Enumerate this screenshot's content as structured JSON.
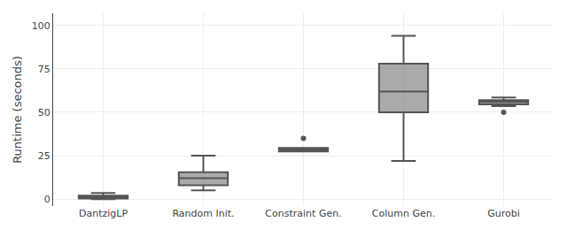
{
  "chart_data": {
    "type": "box",
    "categories": [
      "DantzigLP",
      "Random Init.",
      "Constraint Gen.",
      "Column Gen.",
      "Gurobi"
    ],
    "boxes": [
      {
        "q1": 0.3,
        "median": 1.0,
        "q3": 2.0,
        "whislo": 0.0,
        "whishi": 3.5,
        "fliers": []
      },
      {
        "q1": 8.0,
        "median": 12.0,
        "q3": 15.5,
        "whislo": 5.0,
        "whishi": 25.0,
        "fliers": []
      },
      {
        "q1": 27.5,
        "median": 28.5,
        "q3": 29.5,
        "whislo": 27.5,
        "whishi": 29.5,
        "fliers": [
          35.0
        ]
      },
      {
        "q1": 50.0,
        "median": 62.0,
        "q3": 78.0,
        "whislo": 22.0,
        "whishi": 94.0,
        "fliers": []
      },
      {
        "q1": 54.5,
        "median": 56.0,
        "q3": 57.0,
        "whislo": 53.5,
        "whishi": 58.5,
        "fliers": [
          50.0
        ]
      }
    ],
    "ylabel": "Runtime (seconds)",
    "ylim": [
      -4,
      107
    ],
    "yticks": [
      0,
      25,
      50,
      75,
      100
    ],
    "grid": true,
    "color": "#555555"
  }
}
